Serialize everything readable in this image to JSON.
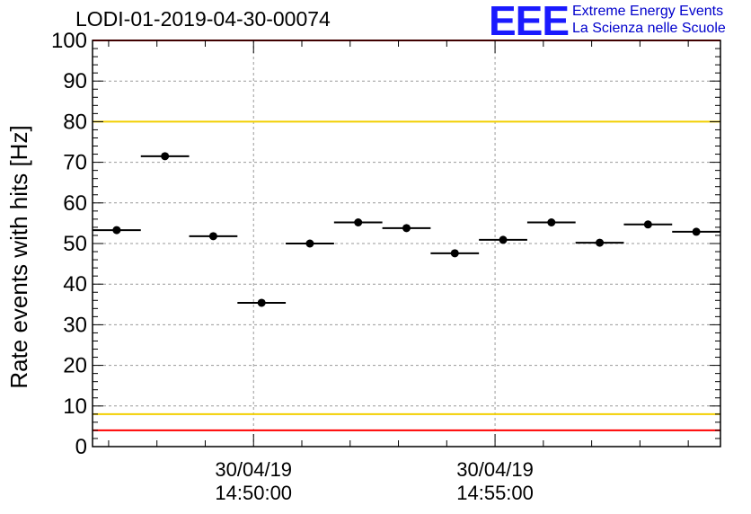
{
  "header": {
    "title": "LODI-01-2019-04-30-00074",
    "logo_mark": "EEE",
    "logo_line1": "Extreme Energy Events",
    "logo_line2": "La Scienza nelle Scuole",
    "logo_color": "#1a1aff"
  },
  "chart_data": {
    "type": "scatter",
    "title": "LODI-01-2019-04-30-00074",
    "ylabel": "Rate events with hits [Hz]",
    "xlabel": "",
    "ylim": [
      0,
      100
    ],
    "yticks": [
      0,
      10,
      20,
      30,
      40,
      50,
      60,
      70,
      80,
      90,
      100
    ],
    "xlim": [
      "14:46:40",
      "14:59:40"
    ],
    "x_tick_labels": [
      {
        "date": "30/04/19",
        "time": "14:50:00"
      },
      {
        "date": "30/04/19",
        "time": "14:55:00"
      }
    ],
    "grid": true,
    "series": [
      {
        "x": [
          "14:47:10",
          "14:48:10",
          "14:49:10",
          "14:50:10",
          "14:51:10",
          "14:52:10",
          "14:53:10",
          "14:54:10",
          "14:55:10",
          "14:56:10",
          "14:57:10",
          "14:58:10",
          "14:59:10"
        ],
        "values": [
          53.3,
          71.5,
          51.8,
          35.4,
          50.0,
          55.2,
          53.8,
          47.6,
          50.9,
          55.2,
          50.2,
          54.7,
          52.9
        ],
        "x_error_seconds": 30,
        "marker": "filled-circle",
        "color": "#000000"
      }
    ],
    "reference_lines": [
      {
        "y": 80,
        "color": "#f2cf00"
      },
      {
        "y": 8,
        "color": "#f2cf00"
      },
      {
        "y": 100,
        "color": "#ff0000"
      },
      {
        "y": 4,
        "color": "#ff0000"
      }
    ]
  }
}
